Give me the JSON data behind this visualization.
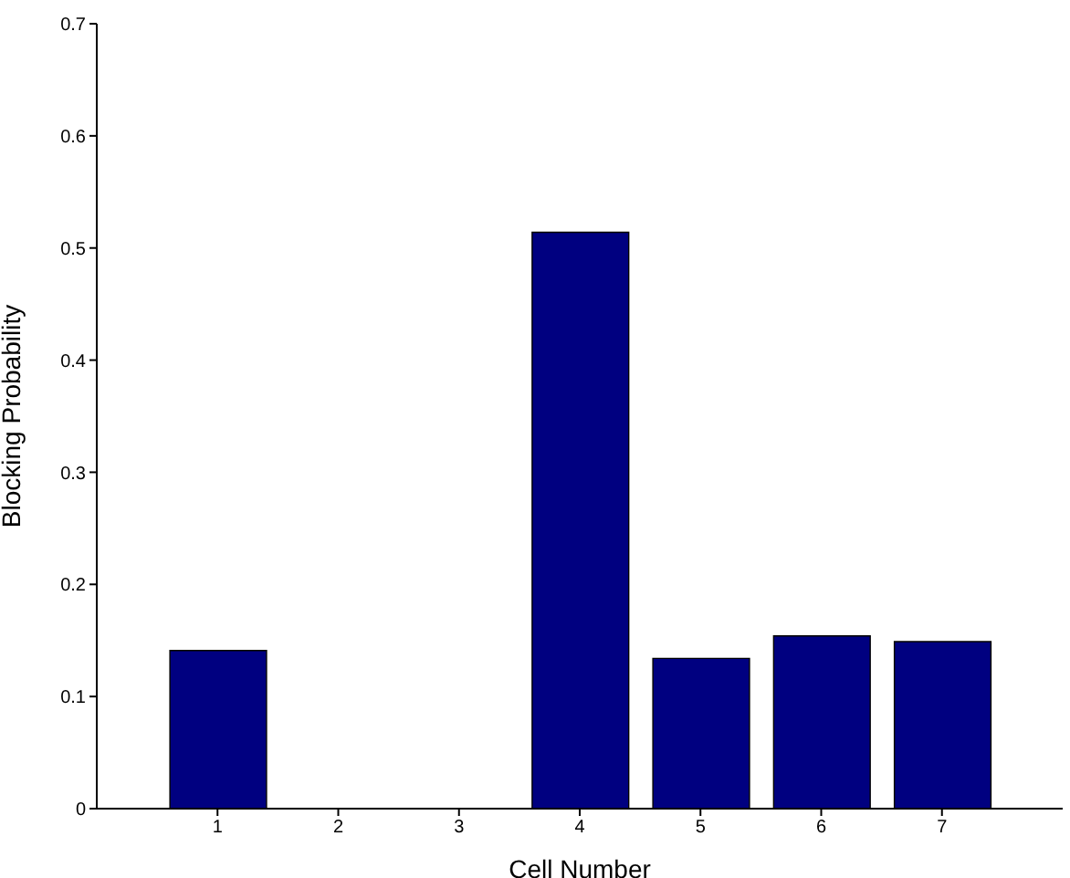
{
  "chart_data": {
    "type": "bar",
    "xlabel": "Cell Number",
    "ylabel": "Blocking Probability",
    "x": [
      1,
      2,
      3,
      4,
      5,
      6,
      7
    ],
    "values": [
      0.141,
      0,
      0,
      0.514,
      0.134,
      0.154,
      0.149
    ],
    "color": "#000080",
    "xlim": [
      0,
      8
    ],
    "xticks": [
      1,
      2,
      3,
      4,
      5,
      6,
      7
    ],
    "ylim": [
      0,
      0.7
    ],
    "yticks": [
      0,
      0.1,
      0.2,
      0.3,
      0.4,
      0.5,
      0.6,
      0.7
    ],
    "grid": false,
    "legend": false
  }
}
